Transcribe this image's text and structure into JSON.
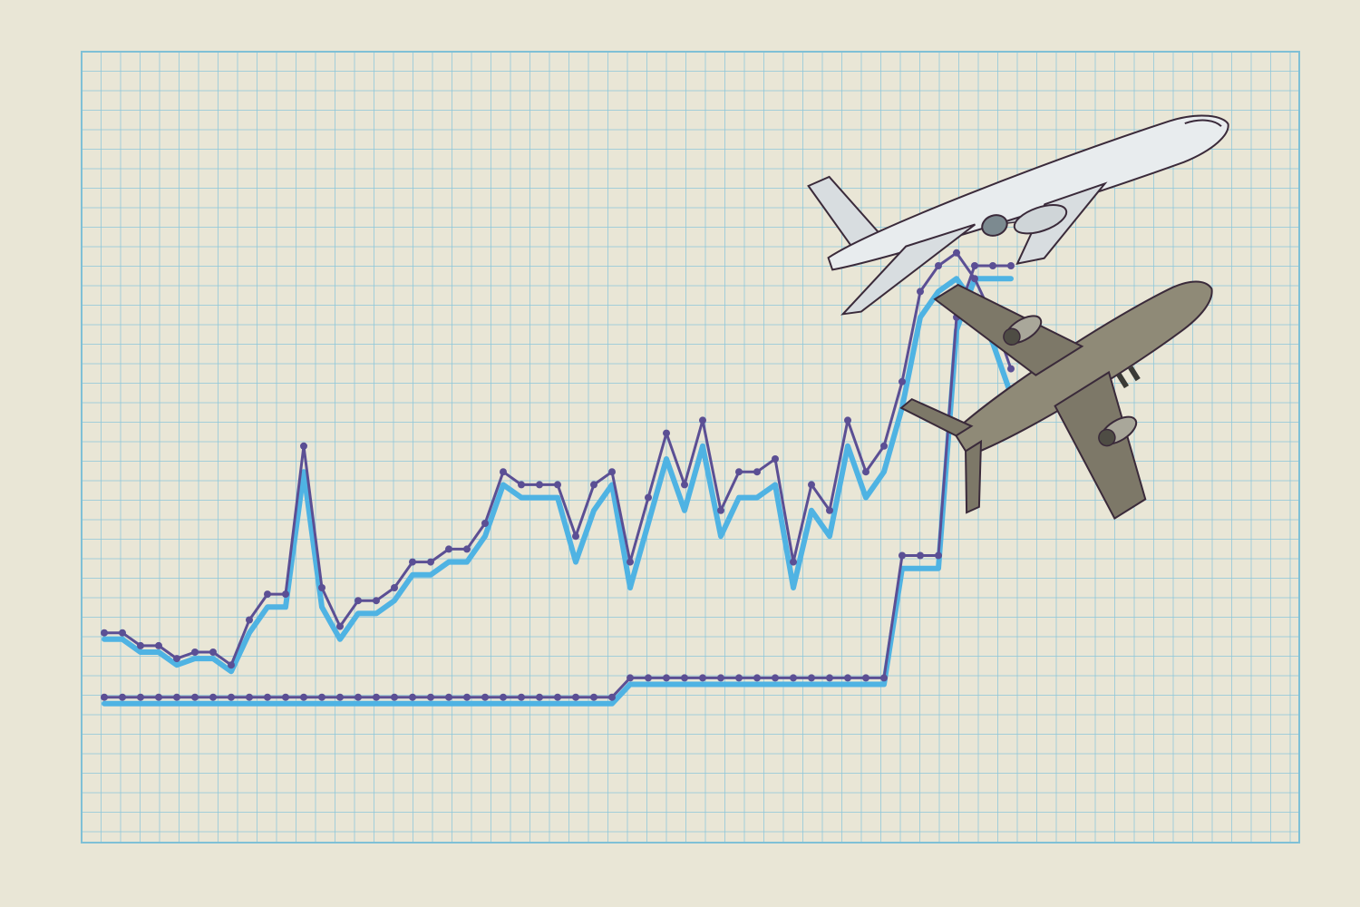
{
  "colors": {
    "paper": "#e9e6d6",
    "grid": "#8cc7da",
    "frame": "#7fc0d6",
    "line_light": "#4fb3e3",
    "line_dark": "#5b4f94",
    "ink": "#3a2a3a",
    "plane_light_body": "#e8ecee",
    "plane_dark_body": "#8f8a77"
  },
  "chart_data": {
    "type": "line",
    "title": "",
    "xlabel": "",
    "ylabel": "",
    "grid": true,
    "legend": "none",
    "x": [
      0,
      1,
      2,
      3,
      4,
      5,
      6,
      7,
      8,
      9,
      10,
      11,
      12,
      13,
      14,
      15,
      16,
      17,
      18,
      19,
      20,
      21,
      22,
      23,
      24,
      25,
      26,
      27,
      28,
      29,
      30,
      31,
      32,
      33,
      34,
      35,
      36,
      37,
      38,
      39,
      40,
      41,
      42,
      43,
      44,
      45,
      46,
      47,
      48,
      49,
      50
    ],
    "ylim": [
      0,
      100
    ],
    "series": [
      {
        "name": "",
        "style": "dark",
        "values": [
          13,
          13,
          11,
          11,
          9,
          10,
          10,
          8,
          15,
          19,
          19,
          42,
          20,
          14,
          18,
          18,
          20,
          24,
          24,
          26,
          26,
          30,
          38,
          36,
          36,
          36,
          28,
          36,
          38,
          24,
          34,
          44,
          36,
          46,
          32,
          38,
          38,
          40,
          24,
          36,
          32,
          46,
          38,
          42,
          52,
          66,
          70,
          72,
          68,
          62,
          54
        ]
      },
      {
        "name": "",
        "style": "light",
        "values": [
          12,
          12,
          10,
          10,
          8,
          9,
          9,
          7,
          13,
          17,
          17,
          38,
          17,
          12,
          16,
          16,
          18,
          22,
          22,
          24,
          24,
          28,
          36,
          34,
          34,
          34,
          24,
          32,
          36,
          20,
          30,
          40,
          32,
          42,
          28,
          34,
          34,
          36,
          20,
          32,
          28,
          42,
          34,
          38,
          48,
          62,
          66,
          68,
          64,
          58,
          50
        ]
      },
      {
        "name": "",
        "style": "dark",
        "values": [
          3,
          3,
          3,
          3,
          3,
          3,
          3,
          3,
          3,
          3,
          3,
          3,
          3,
          3,
          3,
          3,
          3,
          3,
          3,
          3,
          3,
          3,
          3,
          3,
          3,
          3,
          3,
          3,
          3,
          6,
          6,
          6,
          6,
          6,
          6,
          6,
          6,
          6,
          6,
          6,
          6,
          6,
          6,
          6,
          25,
          25,
          25,
          62,
          70,
          70,
          70
        ]
      },
      {
        "name": "",
        "style": "light",
        "values": [
          2,
          2,
          2,
          2,
          2,
          2,
          2,
          2,
          2,
          2,
          2,
          2,
          2,
          2,
          2,
          2,
          2,
          2,
          2,
          2,
          2,
          2,
          2,
          2,
          2,
          2,
          2,
          2,
          2,
          5,
          5,
          5,
          5,
          5,
          5,
          5,
          5,
          5,
          5,
          5,
          5,
          5,
          5,
          5,
          23,
          23,
          23,
          60,
          68,
          68,
          68
        ]
      }
    ]
  },
  "figures": [
    {
      "name": "airplane-climbing",
      "shade": "light"
    },
    {
      "name": "airplane-underside",
      "shade": "dark"
    }
  ]
}
